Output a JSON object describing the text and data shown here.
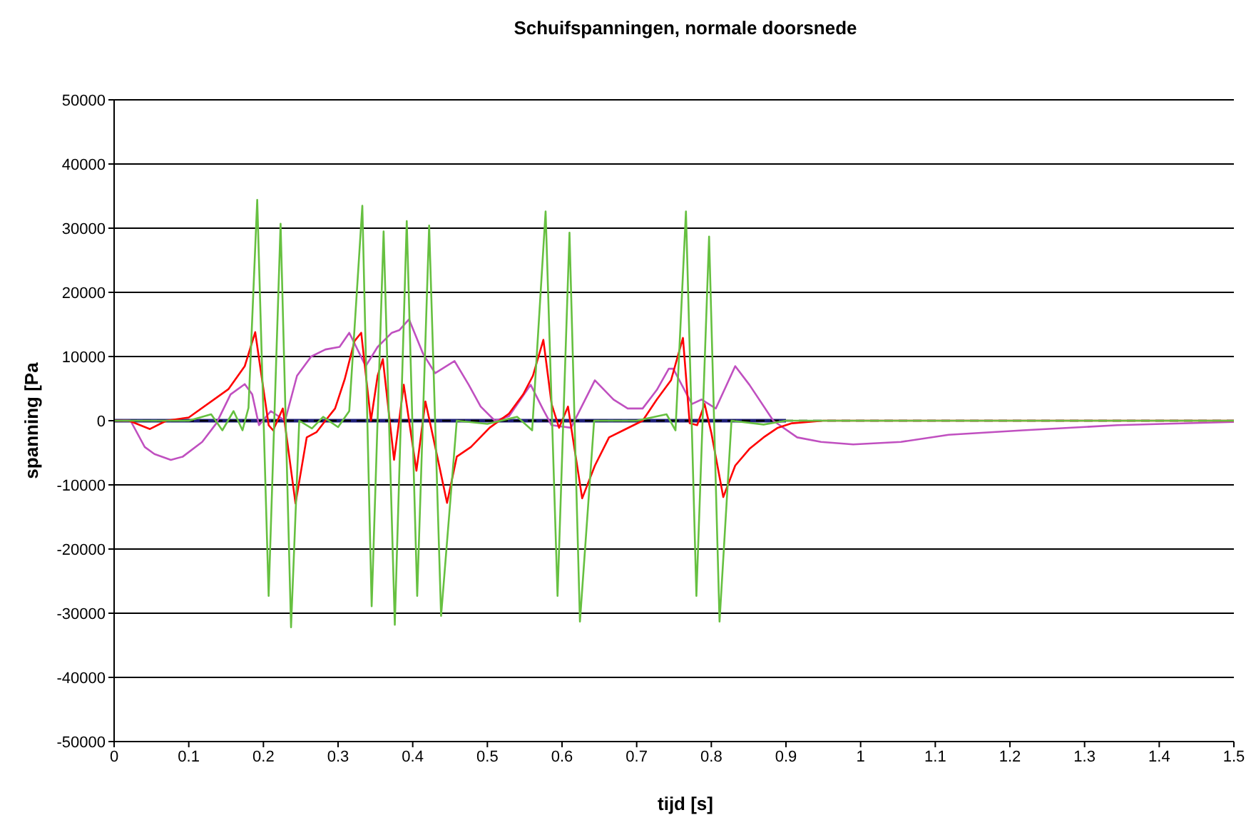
{
  "chart_data": {
    "type": "line",
    "title": "Schuifspanningen, normale doorsnede",
    "xlabel": "tijd [s]",
    "ylabel": "spanning [Pa",
    "xlim": [
      0,
      1.5
    ],
    "xticks": [
      0,
      0.1,
      0.2,
      0.3,
      0.4,
      0.5,
      0.6,
      0.7,
      0.8,
      0.9,
      1,
      1.1,
      1.2,
      1.3,
      1.4,
      1.5
    ],
    "ylim": [
      -50000,
      50000
    ],
    "yticks": [
      -50000,
      -40000,
      -30000,
      -20000,
      -10000,
      0,
      10000,
      20000,
      30000,
      40000,
      50000
    ],
    "grid": "y",
    "marker": "none",
    "series": [
      {
        "color": "#1f1f7a",
        "x": [
          0,
          0.1,
          0.2,
          0.3,
          0.4,
          0.5,
          0.6,
          0.7,
          0.8,
          0.9
        ],
        "values": [
          0,
          0,
          0,
          0,
          0,
          0,
          0,
          0,
          0,
          0
        ]
      },
      {
        "color": "#000000",
        "line_style": "dashed",
        "x": [
          0,
          0.25,
          0.5,
          0.75,
          1,
          1.25,
          1.5
        ],
        "values": [
          0,
          0,
          0,
          0,
          0,
          0,
          0
        ]
      },
      {
        "color": "#c050c0",
        "x": [
          0,
          0.022,
          0.041,
          0.054,
          0.076,
          0.092,
          0.118,
          0.137,
          0.156,
          0.175,
          0.185,
          0.194,
          0.21,
          0.229,
          0.245,
          0.264,
          0.283,
          0.302,
          0.315,
          0.337,
          0.353,
          0.372,
          0.382,
          0.395,
          0.414,
          0.43,
          0.456,
          0.475,
          0.491,
          0.51,
          0.529,
          0.558,
          0.574,
          0.586,
          0.612,
          0.625,
          0.644,
          0.669,
          0.688,
          0.708,
          0.727,
          0.743,
          0.749,
          0.774,
          0.787,
          0.806,
          0.832,
          0.851,
          0.883,
          0.915,
          0.947,
          0.99,
          1.054,
          1.118,
          1.217,
          1.344,
          1.5
        ],
        "values": [
          0,
          0,
          -4100,
          -5200,
          -6100,
          -5600,
          -3300,
          -400,
          4100,
          5700,
          4100,
          -700,
          1500,
          0,
          7000,
          10000,
          11100,
          11500,
          13700,
          8500,
          11500,
          13700,
          14100,
          15800,
          10400,
          7400,
          9300,
          5600,
          2200,
          0,
          700,
          5600,
          1900,
          -700,
          -1100,
          1900,
          6300,
          3300,
          1900,
          1900,
          4800,
          8100,
          8100,
          2600,
          3300,
          1900,
          8500,
          5600,
          0,
          -2600,
          -3300,
          -3700,
          -3300,
          -2200,
          -1500,
          -700,
          -200
        ]
      },
      {
        "color": "#ff0000",
        "x": [
          0,
          0.02,
          0.048,
          0.07,
          0.1,
          0.153,
          0.175,
          0.189,
          0.207,
          0.213,
          0.226,
          0.243,
          0.258,
          0.271,
          0.283,
          0.296,
          0.309,
          0.322,
          0.331,
          0.344,
          0.353,
          0.36,
          0.375,
          0.388,
          0.405,
          0.417,
          0.428,
          0.446,
          0.459,
          0.478,
          0.503,
          0.529,
          0.548,
          0.561,
          0.575,
          0.586,
          0.596,
          0.608,
          0.627,
          0.644,
          0.663,
          0.682,
          0.708,
          0.727,
          0.746,
          0.762,
          0.771,
          0.781,
          0.791,
          0.8,
          0.816,
          0.832,
          0.851,
          0.87,
          0.889,
          0.908,
          0.95,
          1.5
        ],
        "values": [
          0,
          0,
          -1300,
          0,
          500,
          4900,
          8500,
          13800,
          -700,
          -1500,
          1900,
          -12900,
          -2600,
          -1800,
          0,
          1900,
          6500,
          12400,
          13700,
          0,
          7000,
          9600,
          -6100,
          5600,
          -7800,
          3000,
          -2900,
          -12800,
          -5600,
          -4100,
          -1100,
          1100,
          4100,
          7000,
          12600,
          2600,
          -1100,
          2200,
          -12100,
          -7000,
          -2600,
          -1500,
          0,
          3300,
          6300,
          12900,
          -400,
          -700,
          2600,
          -1900,
          -11900,
          -7000,
          -4400,
          -2600,
          -1100,
          -400,
          0,
          0
        ]
      },
      {
        "color": "#66c040",
        "x": [
          0,
          0.1,
          0.13,
          0.145,
          0.16,
          0.172,
          0.18,
          0.1917,
          0.207,
          0.223,
          0.237,
          0.248,
          0.265,
          0.28,
          0.3,
          0.315,
          0.3325,
          0.345,
          0.361,
          0.376,
          0.392,
          0.406,
          0.422,
          0.438,
          0.459,
          0.5,
          0.54,
          0.56,
          0.578,
          0.594,
          0.61,
          0.624,
          0.643,
          0.7,
          0.74,
          0.752,
          0.766,
          0.78,
          0.797,
          0.811,
          0.827,
          0.87,
          0.9,
          1,
          1.5
        ],
        "values": [
          0,
          0,
          1000,
          -1500,
          1500,
          -1500,
          2000,
          34400,
          -27300,
          30700,
          -32200,
          0,
          -1200,
          600,
          -1000,
          1500,
          33500,
          -28900,
          29500,
          -31800,
          31100,
          -27300,
          30400,
          -30400,
          0,
          -500,
          600,
          -1500,
          32600,
          -27300,
          29300,
          -31300,
          0,
          0,
          1000,
          -1500,
          32600,
          -27300,
          28700,
          -31300,
          0,
          -600,
          0,
          0,
          0
        ]
      }
    ]
  }
}
